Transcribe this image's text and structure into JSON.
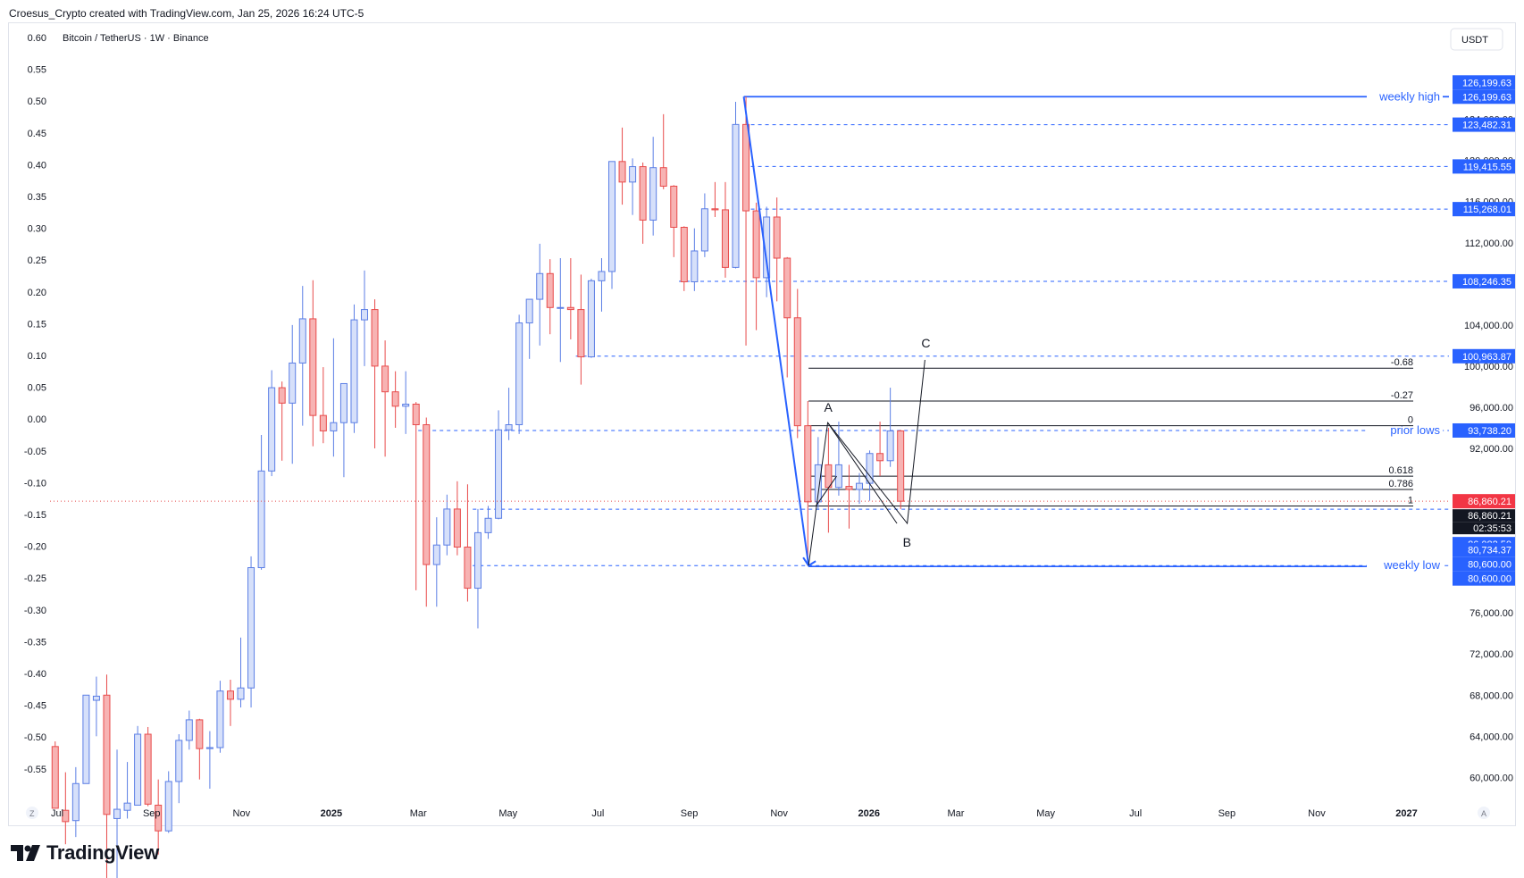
{
  "header": {
    "caption": "Croesus_Crypto created with TradingView.com, Jan 25, 2026 16:24 UTC-5"
  },
  "symbol": {
    "title": "Bitcoin / TetherUS · 1W · Binance",
    "currency": "USDT"
  },
  "footer": {
    "brand": "TradingView",
    "zoom_left": "Z",
    "auto_right": "A"
  },
  "colors": {
    "up": "#5b7ee5",
    "up_fill": "#d6e0fa",
    "down": "#e84b4b",
    "down_fill": "#f7b3b3",
    "accent": "#2962ff",
    "level": "#2962ff"
  },
  "left_axis": {
    "labels": [
      "0.60",
      "0.55",
      "0.50",
      "0.45",
      "0.40",
      "0.35",
      "0.30",
      "0.25",
      "0.20",
      "0.15",
      "0.10",
      "0.05",
      "0.00",
      "-0.05",
      "-0.10",
      "-0.15",
      "-0.20",
      "-0.25",
      "-0.30",
      "-0.35",
      "-0.40",
      "-0.45",
      "-0.50",
      "-0.55"
    ]
  },
  "right_axis": {
    "labels": [
      "124,000.00",
      "120,000.00",
      "116,000.00",
      "112,000.00",
      "104,000.00",
      "100,000.00",
      "96,000.00",
      "92,000.00",
      "76,000.00",
      "72,000.00",
      "68,000.00",
      "64,000.00",
      "60,000.00"
    ]
  },
  "x_axis": {
    "labels": [
      "Jul",
      "Sep",
      "Nov",
      "2025",
      "Mar",
      "May",
      "Jul",
      "Sep",
      "Nov",
      "2026",
      "Mar",
      "May",
      "Jul",
      "Sep",
      "Nov",
      "2027"
    ],
    "bold": [
      "2025",
      "2026",
      "2027"
    ]
  },
  "price_tags": [
    {
      "text": "126,199.63",
      "kind": "level"
    },
    {
      "text": "126,199.63",
      "kind": "level"
    },
    {
      "text": "123,482.31",
      "kind": "level"
    },
    {
      "text": "119,415.55",
      "kind": "level"
    },
    {
      "text": "115,268.01",
      "kind": "level"
    },
    {
      "text": "108,246.35",
      "kind": "level"
    },
    {
      "text": "100,963.87",
      "kind": "level"
    },
    {
      "text": "93,738.20",
      "kind": "level"
    },
    {
      "text": "86,860.21",
      "kind": "red"
    },
    {
      "text": "86,860.21",
      "kind": "dark"
    },
    {
      "text": "02:35:53",
      "kind": "dark"
    },
    {
      "text": "86,082.50",
      "kind": "level"
    },
    {
      "text": "80,734.37",
      "kind": "level"
    },
    {
      "text": "80,600.00",
      "kind": "level"
    },
    {
      "text": "80,600.00",
      "kind": "level"
    }
  ],
  "level_labels": {
    "weekly_high": "weekly high",
    "prior_lows": "prior lows",
    "weekly_low": "weekly low"
  },
  "fib_labels": [
    "-0.68",
    "-0.27",
    "0",
    "0.618",
    "0.786",
    "1"
  ],
  "wave_labels": {
    "a": "A",
    "b": "B",
    "c": "C"
  },
  "chart_data": {
    "type": "candlestick",
    "title": "Bitcoin / TetherUS · 1W · Binance",
    "interval": "1W",
    "x_range": [
      "2024-06-24",
      "2027-01-31"
    ],
    "ylim_price": [
      57600,
      133000
    ],
    "grid": false,
    "series": [
      {
        "date": "2024-06-24",
        "o": 63000,
        "h": 63500,
        "c": 57000,
        "l": 57000
      },
      {
        "date": "2024-07-01",
        "o": 56800,
        "h": 60500,
        "c": 55700,
        "l": 53500
      },
      {
        "date": "2024-07-08",
        "o": 55800,
        "h": 61000,
        "c": 59400,
        "l": 54200
      },
      {
        "date": "2024-07-15",
        "o": 59400,
        "h": 68000,
        "c": 68000,
        "l": 59400
      },
      {
        "date": "2024-07-22",
        "o": 67500,
        "h": 69800,
        "c": 67900,
        "l": 64000
      },
      {
        "date": "2024-07-29",
        "o": 68000,
        "h": 70000,
        "c": 56400,
        "l": 49000
      },
      {
        "date": "2024-08-05",
        "o": 56000,
        "h": 62700,
        "c": 56900,
        "l": 49300
      },
      {
        "date": "2024-08-12",
        "o": 56800,
        "h": 61500,
        "c": 57500,
        "l": 56000
      },
      {
        "date": "2024-08-19",
        "o": 57300,
        "h": 65000,
        "c": 64200,
        "l": 57300
      },
      {
        "date": "2024-08-26",
        "o": 64200,
        "h": 64900,
        "c": 57400,
        "l": 57200
      },
      {
        "date": "2024-09-02",
        "o": 57300,
        "h": 59800,
        "c": 54800,
        "l": 52500
      },
      {
        "date": "2024-09-09",
        "o": 54800,
        "h": 60600,
        "c": 59600,
        "l": 54600
      },
      {
        "date": "2024-09-16",
        "o": 59600,
        "h": 64200,
        "c": 63600,
        "l": 57500
      },
      {
        "date": "2024-09-23",
        "o": 63600,
        "h": 66500,
        "c": 65600,
        "l": 62700
      },
      {
        "date": "2024-09-30",
        "o": 65600,
        "h": 65700,
        "c": 62800,
        "l": 59800
      },
      {
        "date": "2024-10-07",
        "o": 62800,
        "h": 64500,
        "c": 62900,
        "l": 58900
      },
      {
        "date": "2024-10-14",
        "o": 62900,
        "h": 69400,
        "c": 68400,
        "l": 62400
      },
      {
        "date": "2024-10-21",
        "o": 68400,
        "h": 69500,
        "c": 67600,
        "l": 65000
      },
      {
        "date": "2024-10-28",
        "o": 67600,
        "h": 73600,
        "c": 68700,
        "l": 66800
      },
      {
        "date": "2024-11-04",
        "o": 68700,
        "h": 81500,
        "c": 80400,
        "l": 66800
      },
      {
        "date": "2024-11-11",
        "o": 80400,
        "h": 93300,
        "c": 89800,
        "l": 80200
      },
      {
        "date": "2024-11-18",
        "o": 89800,
        "h": 99600,
        "c": 97900,
        "l": 89300
      },
      {
        "date": "2024-11-25",
        "o": 97900,
        "h": 98500,
        "c": 96400,
        "l": 90800
      },
      {
        "date": "2024-12-02",
        "o": 96400,
        "h": 104000,
        "c": 100300,
        "l": 90500
      },
      {
        "date": "2024-12-09",
        "o": 100300,
        "h": 107800,
        "c": 104600,
        "l": 94200
      },
      {
        "date": "2024-12-16",
        "o": 104600,
        "h": 108350,
        "c": 95200,
        "l": 92200
      },
      {
        "date": "2024-12-23",
        "o": 95200,
        "h": 99900,
        "c": 93700,
        "l": 92500
      },
      {
        "date": "2024-12-30",
        "o": 93700,
        "h": 102700,
        "c": 94500,
        "l": 91200
      },
      {
        "date": "2025-01-06",
        "o": 94500,
        "h": 95900,
        "c": 98300,
        "l": 89200
      },
      {
        "date": "2025-01-13",
        "o": 94500,
        "h": 106000,
        "c": 104500,
        "l": 93500
      },
      {
        "date": "2025-01-20",
        "o": 104500,
        "h": 109300,
        "c": 105500,
        "l": 100000
      },
      {
        "date": "2025-01-27",
        "o": 105500,
        "h": 106500,
        "c": 100000,
        "l": 92000
      },
      {
        "date": "2025-02-03",
        "o": 100000,
        "h": 102500,
        "c": 97500,
        "l": 91200
      },
      {
        "date": "2025-02-10",
        "o": 97500,
        "h": 99500,
        "c": 96100,
        "l": 94000
      },
      {
        "date": "2025-02-17",
        "o": 96100,
        "h": 99500,
        "c": 96300,
        "l": 93400
      },
      {
        "date": "2025-02-24",
        "o": 96300,
        "h": 96500,
        "c": 94300,
        "l": 78200
      },
      {
        "date": "2025-03-03",
        "o": 94300,
        "h": 95000,
        "c": 80700,
        "l": 76600
      },
      {
        "date": "2025-03-10",
        "o": 80700,
        "h": 85300,
        "c": 82600,
        "l": 76600
      },
      {
        "date": "2025-03-17",
        "o": 82600,
        "h": 87500,
        "c": 86100,
        "l": 81600
      },
      {
        "date": "2025-03-24",
        "o": 86100,
        "h": 88800,
        "c": 82400,
        "l": 81600
      },
      {
        "date": "2025-03-31",
        "o": 82400,
        "h": 88500,
        "c": 78400,
        "l": 77100
      },
      {
        "date": "2025-04-07",
        "o": 78400,
        "h": 86100,
        "c": 83800,
        "l": 74500
      },
      {
        "date": "2025-04-14",
        "o": 83800,
        "h": 86400,
        "c": 85200,
        "l": 83200
      },
      {
        "date": "2025-04-21",
        "o": 85200,
        "h": 95700,
        "c": 93800,
        "l": 85100
      },
      {
        "date": "2025-04-28",
        "o": 93800,
        "h": 97900,
        "c": 94300,
        "l": 92800
      },
      {
        "date": "2025-05-05",
        "o": 94300,
        "h": 105000,
        "c": 104200,
        "l": 93400
      },
      {
        "date": "2025-05-12",
        "o": 104200,
        "h": 105800,
        "c": 106500,
        "l": 100700
      },
      {
        "date": "2025-05-19",
        "o": 106500,
        "h": 111900,
        "c": 109000,
        "l": 102000
      },
      {
        "date": "2025-05-26",
        "o": 109000,
        "h": 110400,
        "c": 105700,
        "l": 103100
      },
      {
        "date": "2025-06-02",
        "o": 105700,
        "h": 110500,
        "c": 105700,
        "l": 100400
      },
      {
        "date": "2025-06-09",
        "o": 105700,
        "h": 110500,
        "c": 105500,
        "l": 102600
      },
      {
        "date": "2025-06-16",
        "o": 105500,
        "h": 108900,
        "c": 100900,
        "l": 98200
      },
      {
        "date": "2025-06-23",
        "o": 100900,
        "h": 108500,
        "c": 108300,
        "l": 100800
      },
      {
        "date": "2025-06-30",
        "o": 108300,
        "h": 110500,
        "c": 109200,
        "l": 105300
      },
      {
        "date": "2025-07-07",
        "o": 109200,
        "h": 119500,
        "c": 119900,
        "l": 107500
      },
      {
        "date": "2025-07-14",
        "o": 119900,
        "h": 123200,
        "c": 117900,
        "l": 115700
      },
      {
        "date": "2025-07-21",
        "o": 117900,
        "h": 120200,
        "c": 119400,
        "l": 114700
      },
      {
        "date": "2025-07-28",
        "o": 119400,
        "h": 119800,
        "c": 114200,
        "l": 111900
      },
      {
        "date": "2025-08-04",
        "o": 114200,
        "h": 122300,
        "c": 119300,
        "l": 112700
      },
      {
        "date": "2025-08-11",
        "o": 119300,
        "h": 124500,
        "c": 117500,
        "l": 117200
      },
      {
        "date": "2025-08-18",
        "o": 117500,
        "h": 117600,
        "c": 113500,
        "l": 110600
      },
      {
        "date": "2025-08-25",
        "o": 113500,
        "h": 113600,
        "c": 108200,
        "l": 107300
      },
      {
        "date": "2025-09-01",
        "o": 108200,
        "h": 113400,
        "c": 111200,
        "l": 107300
      },
      {
        "date": "2025-09-08",
        "o": 111200,
        "h": 116800,
        "c": 115300,
        "l": 110600
      },
      {
        "date": "2025-09-15",
        "o": 115300,
        "h": 117900,
        "c": 115200,
        "l": 114500
      },
      {
        "date": "2025-09-22",
        "o": 115200,
        "h": 117900,
        "c": 109600,
        "l": 108600
      },
      {
        "date": "2025-09-29",
        "o": 109600,
        "h": 125700,
        "c": 123500,
        "l": 109500
      },
      {
        "date": "2025-10-06",
        "o": 123500,
        "h": 126200,
        "c": 115100,
        "l": 102000
      },
      {
        "date": "2025-10-13",
        "o": 115100,
        "h": 115900,
        "c": 108600,
        "l": 103500
      },
      {
        "date": "2025-10-20",
        "o": 108600,
        "h": 115500,
        "c": 114500,
        "l": 106700
      },
      {
        "date": "2025-10-27",
        "o": 114500,
        "h": 116400,
        "c": 110500,
        "l": 106300
      },
      {
        "date": "2025-11-03",
        "o": 110500,
        "h": 110600,
        "c": 104700,
        "l": 98900
      },
      {
        "date": "2025-11-10",
        "o": 104700,
        "h": 107500,
        "c": 94200,
        "l": 93000
      },
      {
        "date": "2025-11-17",
        "o": 94200,
        "h": 96600,
        "c": 86800,
        "l": 80600
      },
      {
        "date": "2025-11-24",
        "o": 86800,
        "h": 93100,
        "c": 90400,
        "l": 86000
      },
      {
        "date": "2025-12-01",
        "o": 90400,
        "h": 94000,
        "c": 88200,
        "l": 83800
      },
      {
        "date": "2025-12-08",
        "o": 88200,
        "h": 94600,
        "c": 90400,
        "l": 87400
      },
      {
        "date": "2025-12-15",
        "o": 88300,
        "h": 90400,
        "c": 88000,
        "l": 84200
      },
      {
        "date": "2025-12-22",
        "o": 88000,
        "h": 89600,
        "c": 88600,
        "l": 86600
      },
      {
        "date": "2025-12-29",
        "o": 88600,
        "h": 91800,
        "c": 91500,
        "l": 86900
      },
      {
        "date": "2026-01-05",
        "o": 91500,
        "h": 94600,
        "c": 90800,
        "l": 89300
      },
      {
        "date": "2026-01-12",
        "o": 90800,
        "h": 97900,
        "c": 93700,
        "l": 90200
      },
      {
        "date": "2026-01-19",
        "o": 93700,
        "h": 93800,
        "c": 86860,
        "l": 86100
      }
    ],
    "levels": [
      {
        "price": 126199.63,
        "label": "weekly high",
        "style": "solid"
      },
      {
        "price": 123482.31,
        "style": "dashed"
      },
      {
        "price": 119415.55,
        "style": "dashed"
      },
      {
        "price": 115268.01,
        "style": "dashed"
      },
      {
        "price": 108246.35,
        "style": "dashed"
      },
      {
        "price": 100963.87,
        "style": "dashed"
      },
      {
        "price": 93738.2,
        "label": "prior lows",
        "style": "dashed"
      },
      {
        "price": 86082.5,
        "style": "dashed"
      },
      {
        "price": 80600.0,
        "label": "weekly low",
        "style": "dashed"
      }
    ],
    "fib_levels": [
      {
        "label": "-0.68",
        "price": 99800
      },
      {
        "label": "-0.27",
        "price": 96600
      },
      {
        "label": "0",
        "price": 94200
      },
      {
        "label": "0.618",
        "price": 89300
      },
      {
        "label": "0.786",
        "price": 88000
      },
      {
        "label": "1",
        "price": 86400
      }
    ],
    "waves": [
      {
        "date": "2025-11-21",
        "price": 80600
      },
      {
        "date": "2025-12-04",
        "price": 94500,
        "label": "A"
      },
      {
        "date": "2026-01-27",
        "price": 84700,
        "label": "B"
      },
      {
        "date": "2026-02-08",
        "price": 100600,
        "label": "C"
      }
    ],
    "drop_line": {
      "from": {
        "date": "2025-10-08",
        "price": 126199.63
      },
      "to": {
        "date": "2025-11-21",
        "price": 80600
      }
    },
    "last_price": 86860.21,
    "countdown": "02:35:53"
  }
}
